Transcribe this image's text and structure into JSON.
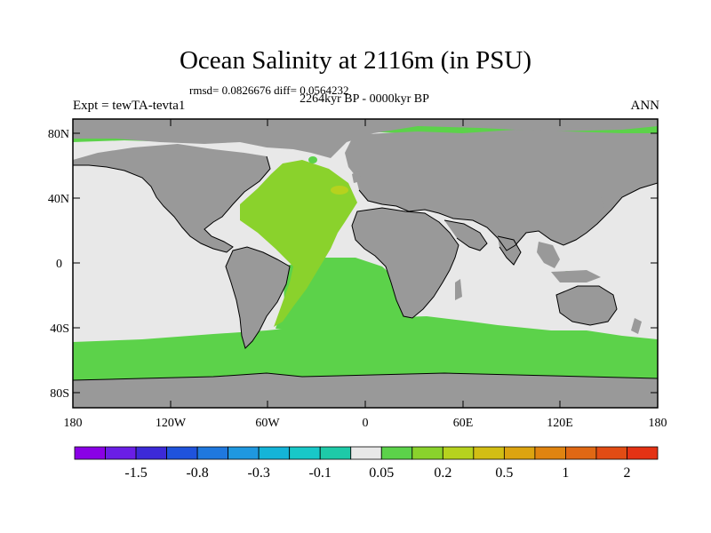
{
  "header": {
    "title": "Ocean Salinity at 2116m (in PSU)",
    "stats": "rmsd= 0.0826676 diff= 0.0564232",
    "period": "2264kyr BP - 0000kyr BP",
    "experiment": "Expt = tewTA-tevta1",
    "season": "ANN"
  },
  "axes": {
    "y_ticks": [
      "80N",
      "40N",
      "0",
      "40S",
      "80S"
    ],
    "x_ticks": [
      "180",
      "120W",
      "60W",
      "0",
      "60E",
      "120E",
      "180"
    ]
  },
  "colorbar": {
    "colors": [
      "#8a00e6",
      "#6a1ee6",
      "#3c2ad8",
      "#1f53dc",
      "#1f78de",
      "#1f98e0",
      "#14b4d8",
      "#18c8c8",
      "#1ecaa8",
      "#e8e8e8",
      "#5cd24a",
      "#8ad22c",
      "#b6d21e",
      "#d2be14",
      "#dca410",
      "#e08410",
      "#e06814",
      "#e24c14",
      "#e43214"
    ],
    "labels": [
      {
        "text": "-1.5",
        "after_box": 2
      },
      {
        "text": "-0.8",
        "after_box": 4
      },
      {
        "text": "-0.3",
        "after_box": 6
      },
      {
        "text": "-0.1",
        "after_box": 8
      },
      {
        "text": "0.05",
        "after_box": 10
      },
      {
        "text": "0.2",
        "after_box": 12
      },
      {
        "text": "0.5",
        "after_box": 14
      },
      {
        "text": "1",
        "after_box": 16
      },
      {
        "text": "2",
        "after_box": 18
      }
    ]
  },
  "map_colors": {
    "land": "#999999",
    "near_zero": "#e8e8e8",
    "green": "#5cd24a",
    "yellow_green": "#8ad22c",
    "olive": "#b6d21e",
    "orange": "#d2be14",
    "coast": "#000000"
  }
}
